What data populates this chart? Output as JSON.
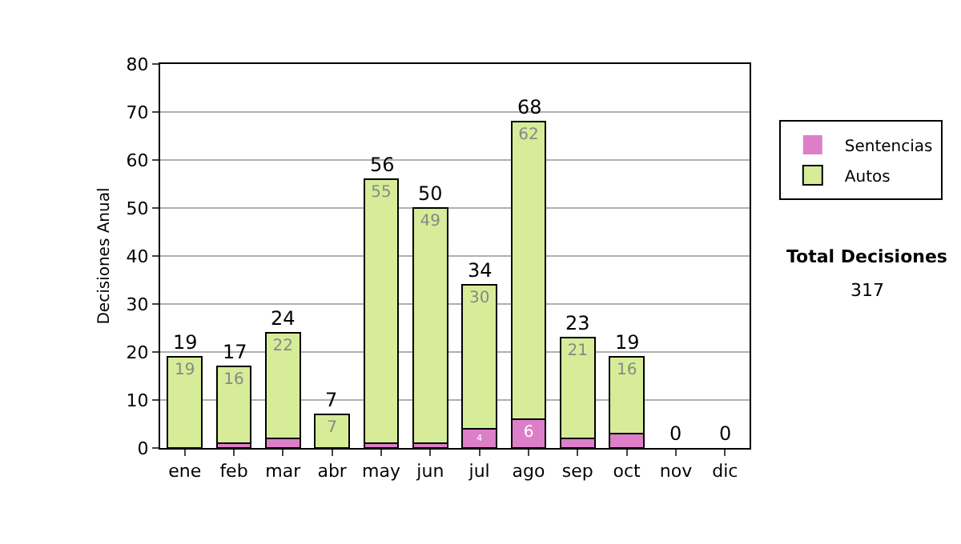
{
  "chart_data": {
    "type": "bar",
    "stacked": true,
    "ylabel": "Decisiones Anual",
    "categories": [
      "ene",
      "feb",
      "mar",
      "abr",
      "may",
      "jun",
      "jul",
      "ago",
      "sep",
      "oct",
      "nov",
      "dic"
    ],
    "series": [
      {
        "name": "Sentencias",
        "color": "#dc7fc8",
        "values": [
          0,
          1,
          2,
          0,
          1,
          1,
          4,
          6,
          2,
          3,
          0,
          0
        ],
        "value_labels": [
          null,
          null,
          null,
          null,
          null,
          null,
          "4",
          "6",
          null,
          null,
          null,
          null
        ]
      },
      {
        "name": "Autos",
        "color": "#d6ec98",
        "values": [
          19,
          16,
          22,
          7,
          55,
          49,
          30,
          62,
          21,
          16,
          0,
          0
        ],
        "value_labels": [
          "19",
          "16",
          "22",
          "7",
          "55",
          "49",
          "30",
          "62",
          "21",
          "16",
          null,
          null
        ]
      }
    ],
    "totals": [
      "19",
      "17",
      "24",
      "7",
      "56",
      "50",
      "34",
      "68",
      "23",
      "19",
      "0",
      "0"
    ],
    "ylim": [
      0,
      80
    ],
    "yticks": [
      0,
      10,
      20,
      30,
      40,
      50,
      60,
      70,
      80
    ],
    "grid": "y",
    "legend": "right",
    "annotations": [
      "Total Decisiones",
      "317"
    ]
  }
}
